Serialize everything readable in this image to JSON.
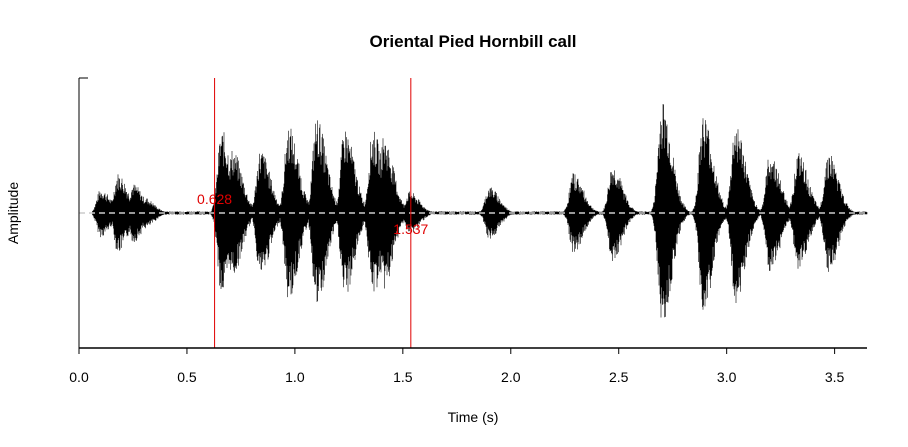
{
  "chart_data": {
    "type": "line",
    "title": "Oriental Pied Hornbill call",
    "xlabel": "Time (s)",
    "ylabel": "Amplitude",
    "xlim": [
      0,
      3.65
    ],
    "ylim": [
      -1,
      1
    ],
    "x_ticks": [
      0.0,
      0.5,
      1.0,
      1.5,
      2.0,
      2.5,
      3.0,
      3.5
    ],
    "x_tick_labels": [
      "0.0",
      "0.5",
      "1.0",
      "1.5",
      "2.0",
      "2.5",
      "3.0",
      "3.5"
    ],
    "grid": false,
    "baseline": {
      "y": 0,
      "style": "dashed",
      "color": "#cccccc"
    },
    "waveform_color": "#000000",
    "marker_color": "#e00000",
    "markers": [
      {
        "x": 0.628,
        "label": "0.628"
      },
      {
        "x": 1.537,
        "label": "1.537"
      }
    ],
    "envelope": [
      {
        "t": 0.1,
        "a": 0.18
      },
      {
        "t": 0.18,
        "a": 0.3
      },
      {
        "t": 0.25,
        "a": 0.22
      },
      {
        "t": 0.3,
        "a": 0.12
      },
      {
        "t": 0.66,
        "a": 0.62
      },
      {
        "t": 0.71,
        "a": 0.48
      },
      {
        "t": 0.84,
        "a": 0.48
      },
      {
        "t": 0.97,
        "a": 0.66
      },
      {
        "t": 1.1,
        "a": 0.72
      },
      {
        "t": 1.23,
        "a": 0.64
      },
      {
        "t": 1.36,
        "a": 0.62
      },
      {
        "t": 1.41,
        "a": 0.58
      },
      {
        "t": 1.53,
        "a": 0.16
      },
      {
        "t": 1.9,
        "a": 0.2
      },
      {
        "t": 2.29,
        "a": 0.3
      },
      {
        "t": 2.47,
        "a": 0.36
      },
      {
        "t": 2.7,
        "a": 0.85
      },
      {
        "t": 2.89,
        "a": 0.75
      },
      {
        "t": 3.04,
        "a": 0.68
      },
      {
        "t": 3.2,
        "a": 0.45
      },
      {
        "t": 3.33,
        "a": 0.45
      },
      {
        "t": 3.47,
        "a": 0.46
      }
    ]
  }
}
